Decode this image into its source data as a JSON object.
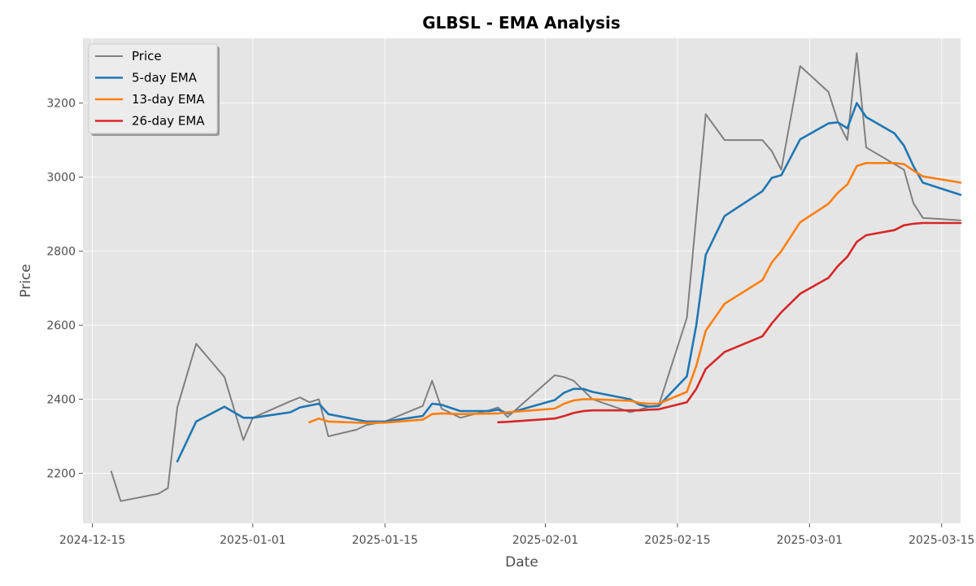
{
  "chart_data": {
    "type": "line",
    "title": "GLBSL - EMA Analysis",
    "xlabel": "Date",
    "ylabel": "Price",
    "xlim": [
      "2024-12-14",
      "2025-03-17"
    ],
    "ylim": [
      2065,
      3375
    ],
    "x_ticks": [
      "2024-12-15",
      "2025-01-01",
      "2025-01-15",
      "2025-02-01",
      "2025-02-15",
      "2025-03-01",
      "2025-03-15"
    ],
    "y_ticks": [
      2200,
      2400,
      2600,
      2800,
      3000,
      3200
    ],
    "grid": true,
    "legend_position": "top-left",
    "series": [
      {
        "name": "Price",
        "color": "#808080",
        "points": [
          [
            "2024-12-17",
            2205
          ],
          [
            "2024-12-18",
            2125
          ],
          [
            "2024-12-22",
            2145
          ],
          [
            "2024-12-23",
            2160
          ],
          [
            "2024-12-24",
            2378
          ],
          [
            "2024-12-26",
            2550
          ],
          [
            "2024-12-29",
            2460
          ],
          [
            "2024-12-31",
            2290
          ],
          [
            "2025-01-01",
            2350
          ],
          [
            "2025-01-05",
            2395
          ],
          [
            "2025-01-06",
            2405
          ],
          [
            "2025-01-07",
            2392
          ],
          [
            "2025-01-08",
            2400
          ],
          [
            "2025-01-09",
            2300
          ],
          [
            "2025-01-12",
            2318
          ],
          [
            "2025-01-13",
            2330
          ],
          [
            "2025-01-14",
            2335
          ],
          [
            "2025-01-15",
            2340
          ],
          [
            "2025-01-19",
            2382
          ],
          [
            "2025-01-20",
            2450
          ],
          [
            "2025-01-21",
            2375
          ],
          [
            "2025-01-23",
            2350
          ],
          [
            "2025-01-26",
            2370
          ],
          [
            "2025-01-27",
            2378
          ],
          [
            "2025-01-28",
            2352
          ],
          [
            "2025-02-02",
            2465
          ],
          [
            "2025-02-03",
            2460
          ],
          [
            "2025-02-04",
            2450
          ],
          [
            "2025-02-05",
            2425
          ],
          [
            "2025-02-06",
            2400
          ],
          [
            "2025-02-10",
            2365
          ],
          [
            "2025-02-11",
            2372
          ],
          [
            "2025-02-12",
            2380
          ],
          [
            "2025-02-13",
            2382
          ],
          [
            "2025-02-16",
            2620
          ],
          [
            "2025-02-18",
            3170
          ],
          [
            "2025-02-20",
            3100
          ],
          [
            "2025-02-24",
            3100
          ],
          [
            "2025-02-25",
            3070
          ],
          [
            "2025-02-26",
            3020
          ],
          [
            "2025-02-28",
            3300
          ],
          [
            "2025-03-03",
            3230
          ],
          [
            "2025-03-04",
            3150
          ],
          [
            "2025-03-05",
            3100
          ],
          [
            "2025-03-06",
            3335
          ],
          [
            "2025-03-07",
            3080
          ],
          [
            "2025-03-11",
            3020
          ],
          [
            "2025-03-12",
            2930
          ],
          [
            "2025-03-13",
            2890
          ],
          [
            "2025-03-17",
            2883
          ]
        ]
      },
      {
        "name": "5-day EMA",
        "color": "#1f77b4",
        "points": [
          [
            "2024-12-24",
            2232
          ],
          [
            "2024-12-26",
            2340
          ],
          [
            "2024-12-29",
            2380
          ],
          [
            "2024-12-31",
            2350
          ],
          [
            "2025-01-01",
            2350
          ],
          [
            "2025-01-05",
            2365
          ],
          [
            "2025-01-06",
            2378
          ],
          [
            "2025-01-08",
            2388
          ],
          [
            "2025-01-09",
            2360
          ],
          [
            "2025-01-13",
            2340
          ],
          [
            "2025-01-15",
            2340
          ],
          [
            "2025-01-19",
            2355
          ],
          [
            "2025-01-20",
            2388
          ],
          [
            "2025-01-21",
            2385
          ],
          [
            "2025-01-23",
            2368
          ],
          [
            "2025-01-26",
            2368
          ],
          [
            "2025-01-27",
            2372
          ],
          [
            "2025-01-28",
            2362
          ],
          [
            "2025-02-02",
            2398
          ],
          [
            "2025-02-03",
            2418
          ],
          [
            "2025-02-04",
            2428
          ],
          [
            "2025-02-05",
            2428
          ],
          [
            "2025-02-06",
            2420
          ],
          [
            "2025-02-10",
            2400
          ],
          [
            "2025-02-11",
            2385
          ],
          [
            "2025-02-12",
            2380
          ],
          [
            "2025-02-13",
            2382
          ],
          [
            "2025-02-16",
            2462
          ],
          [
            "2025-02-17",
            2600
          ],
          [
            "2025-02-18",
            2790
          ],
          [
            "2025-02-20",
            2895
          ],
          [
            "2025-02-24",
            2962
          ],
          [
            "2025-02-25",
            2998
          ],
          [
            "2025-02-26",
            3005
          ],
          [
            "2025-02-28",
            3102
          ],
          [
            "2025-03-03",
            3145
          ],
          [
            "2025-03-04",
            3148
          ],
          [
            "2025-03-05",
            3132
          ],
          [
            "2025-03-06",
            3200
          ],
          [
            "2025-03-07",
            3162
          ],
          [
            "2025-03-10",
            3118
          ],
          [
            "2025-03-11",
            3085
          ],
          [
            "2025-03-12",
            3030
          ],
          [
            "2025-03-13",
            2985
          ],
          [
            "2025-03-17",
            2952
          ]
        ]
      },
      {
        "name": "13-day EMA",
        "color": "#ff7f0e",
        "points": [
          [
            "2025-01-07",
            2338
          ],
          [
            "2025-01-08",
            2348
          ],
          [
            "2025-01-09",
            2340
          ],
          [
            "2025-01-13",
            2336
          ],
          [
            "2025-01-15",
            2337
          ],
          [
            "2025-01-19",
            2345
          ],
          [
            "2025-01-20",
            2360
          ],
          [
            "2025-01-21",
            2362
          ],
          [
            "2025-01-23",
            2360
          ],
          [
            "2025-01-27",
            2362
          ],
          [
            "2025-01-28",
            2365
          ],
          [
            "2025-02-02",
            2375
          ],
          [
            "2025-02-03",
            2388
          ],
          [
            "2025-02-04",
            2397
          ],
          [
            "2025-02-05",
            2400
          ],
          [
            "2025-02-06",
            2400
          ],
          [
            "2025-02-10",
            2396
          ],
          [
            "2025-02-11",
            2390
          ],
          [
            "2025-02-12",
            2388
          ],
          [
            "2025-02-13",
            2388
          ],
          [
            "2025-02-16",
            2420
          ],
          [
            "2025-02-17",
            2490
          ],
          [
            "2025-02-18",
            2585
          ],
          [
            "2025-02-20",
            2658
          ],
          [
            "2025-02-24",
            2722
          ],
          [
            "2025-02-25",
            2770
          ],
          [
            "2025-02-26",
            2800
          ],
          [
            "2025-02-28",
            2878
          ],
          [
            "2025-03-03",
            2928
          ],
          [
            "2025-03-04",
            2958
          ],
          [
            "2025-03-05",
            2980
          ],
          [
            "2025-03-06",
            3030
          ],
          [
            "2025-03-07",
            3038
          ],
          [
            "2025-03-10",
            3038
          ],
          [
            "2025-03-11",
            3035
          ],
          [
            "2025-03-12",
            3018
          ],
          [
            "2025-03-13",
            3002
          ],
          [
            "2025-03-17",
            2985
          ]
        ]
      },
      {
        "name": "26-day EMA",
        "color": "#d62728",
        "points": [
          [
            "2025-01-27",
            2338
          ],
          [
            "2025-01-28",
            2339
          ],
          [
            "2025-02-02",
            2348
          ],
          [
            "2025-02-03",
            2355
          ],
          [
            "2025-02-04",
            2363
          ],
          [
            "2025-02-05",
            2368
          ],
          [
            "2025-02-06",
            2370
          ],
          [
            "2025-02-10",
            2370
          ],
          [
            "2025-02-11",
            2370
          ],
          [
            "2025-02-12",
            2372
          ],
          [
            "2025-02-13",
            2373
          ],
          [
            "2025-02-16",
            2392
          ],
          [
            "2025-02-17",
            2428
          ],
          [
            "2025-02-18",
            2482
          ],
          [
            "2025-02-20",
            2528
          ],
          [
            "2025-02-24",
            2570
          ],
          [
            "2025-02-25",
            2605
          ],
          [
            "2025-02-26",
            2635
          ],
          [
            "2025-02-28",
            2685
          ],
          [
            "2025-03-03",
            2728
          ],
          [
            "2025-03-04",
            2760
          ],
          [
            "2025-03-05",
            2785
          ],
          [
            "2025-03-06",
            2825
          ],
          [
            "2025-03-07",
            2843
          ],
          [
            "2025-03-10",
            2857
          ],
          [
            "2025-03-11",
            2870
          ],
          [
            "2025-03-12",
            2874
          ],
          [
            "2025-03-13",
            2876
          ],
          [
            "2025-03-17",
            2876
          ]
        ]
      }
    ]
  }
}
